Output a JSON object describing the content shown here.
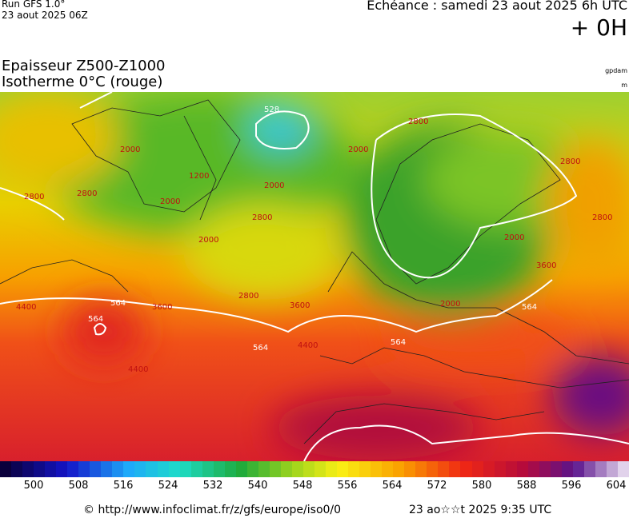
{
  "header": {
    "run": "Run GFS 1.0°",
    "date": "23 aout 2025 06Z",
    "echeance": "Echéance : samedi 23 aout 2025 6h UTC",
    "lead": "+ 0H"
  },
  "title": {
    "line1": "Epaisseur Z500-Z1000",
    "line2": "Isotherme 0°C (rouge)"
  },
  "units": {
    "thickness": "gpdam",
    "height": "m"
  },
  "map": {
    "thickness_labels": [
      "528",
      "564",
      "564",
      "564",
      "564",
      "564"
    ],
    "isotherm_labels": [
      "2800",
      "2000",
      "1200",
      "2000",
      "2000",
      "2800",
      "2800",
      "3600",
      "4400",
      "3600",
      "2800",
      "2000",
      "2800",
      "2000",
      "3600",
      "4400",
      "4400",
      "2000",
      "2800",
      "2000",
      "2800"
    ]
  },
  "colorbar": {
    "ticks": [
      500,
      508,
      516,
      524,
      532,
      540,
      548,
      556,
      564,
      572,
      580,
      588,
      596,
      604
    ]
  },
  "footer": {
    "source": "© http://www.infoclimat.fr/z/gfs/europe/iso0/0",
    "generated": "23 ao☆☆t 2025  9:35 UTC"
  }
}
